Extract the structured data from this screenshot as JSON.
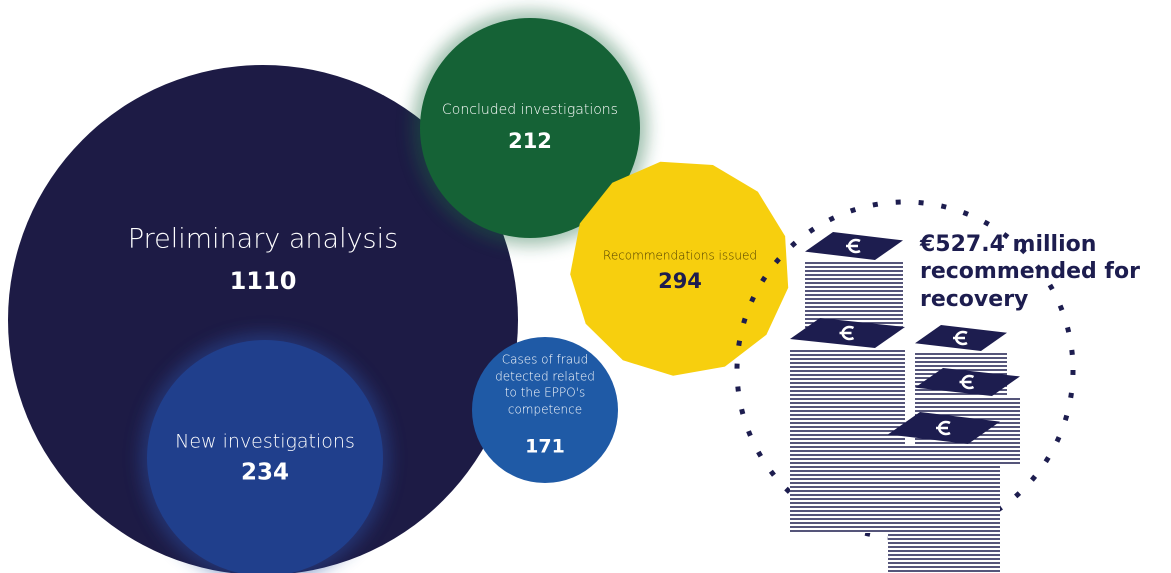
{
  "bubbles": [
    {
      "label_lines": [
        "Preliminary analysis"
      ],
      "value": "1110"
    },
    {
      "label_lines": [
        "New investigations"
      ],
      "value": "234"
    },
    {
      "label_lines": [
        "Concluded investigations"
      ],
      "value": "212"
    },
    {
      "label_lines": [
        "Recommendations issued"
      ],
      "value": "294"
    },
    {
      "label_lines": [
        "Cases of fraud",
        "detected related",
        "to the EPPO's",
        "competence"
      ],
      "value": "171"
    }
  ],
  "recovery": {
    "lines": [
      "€527.4 million",
      "recommended for",
      "recovery"
    ]
  }
}
